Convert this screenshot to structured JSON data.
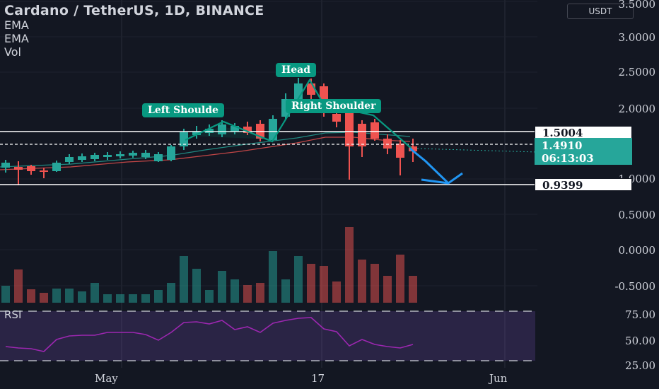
{
  "header": {
    "title": "Cardano / TetherUS, 1D, BINANCE",
    "indicators": [
      "EMA",
      "EMA",
      "Vol"
    ]
  },
  "currency_button": "USDT",
  "price_axis": [
    "3.5000",
    "3.0000",
    "2.5000",
    "2.0000",
    "1.0000",
    "0.5000",
    "0.0000",
    "-0.5000"
  ],
  "price_tags": {
    "level_high": "1.5004",
    "last_price": "1.4910",
    "countdown": "06:13:03",
    "level_low": "0.9399"
  },
  "rsi": {
    "label": "RSI",
    "axis": [
      "75.00",
      "50.00",
      "25.00"
    ]
  },
  "time_axis": [
    "May",
    "17",
    "Jun"
  ],
  "annotations": {
    "head": "Head",
    "left_shoulder": "Left Shoulde",
    "right_shoulder": "Right Shoulder"
  },
  "colors": {
    "background": "#131722",
    "up": "#26a69a",
    "down": "#ef5350",
    "pattern": "#089981",
    "arrow": "#2196f3",
    "rsi": "#9c27b0"
  }
}
